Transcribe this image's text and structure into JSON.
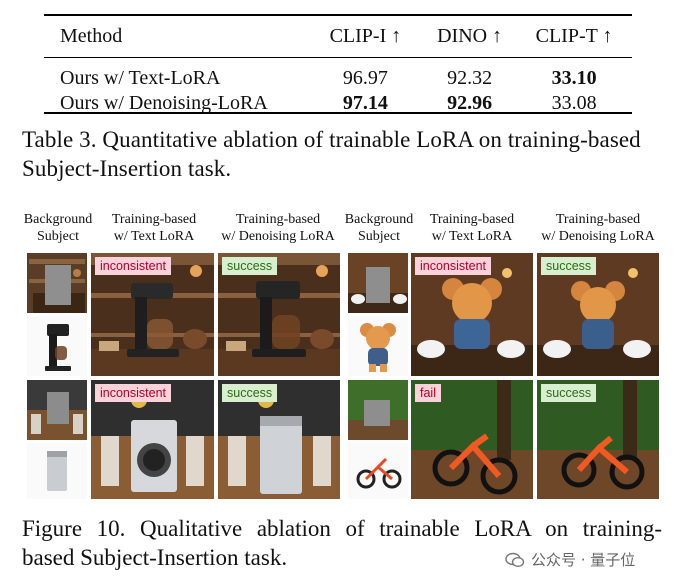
{
  "table": {
    "headers": [
      "Method",
      "CLIP-I ↑",
      "DINO ↑",
      "CLIP-T ↑"
    ],
    "rows": [
      {
        "method": "Ours w/ Text-LoRA",
        "clip_i": "96.97",
        "dino": "92.32",
        "clip_t": "33.10"
      },
      {
        "method": "Ours w/ Denoising-LoRA",
        "clip_i": "97.14",
        "dino": "92.96",
        "clip_t": "33.08"
      }
    ],
    "caption": "Table 3. Quantitative ablation of trainable LoRA on training-based Subject-Insertion task."
  },
  "figure": {
    "column_headers": {
      "bg_subject": [
        "Background",
        "Subject"
      ],
      "text_lora": [
        "Training-based",
        "w/ Text LoRA"
      ],
      "denoise_lora": [
        "Training-based",
        "w/ Denoising LoRA"
      ]
    },
    "tags": {
      "coffee_text": "inconsistent",
      "coffee_denoise": "success",
      "bear_text": "inconsistent",
      "bear_denoise": "success",
      "washer_text": "inconsistent",
      "washer_denoise": "success",
      "bike_text": "fail",
      "bike_denoise": "success"
    },
    "caption_line1": "Figure 10.  Qualitative ablation of trainable LoRA on training-",
    "caption_line2": "based Subject-Insertion task."
  },
  "watermark": "公众号 · 量子位"
}
